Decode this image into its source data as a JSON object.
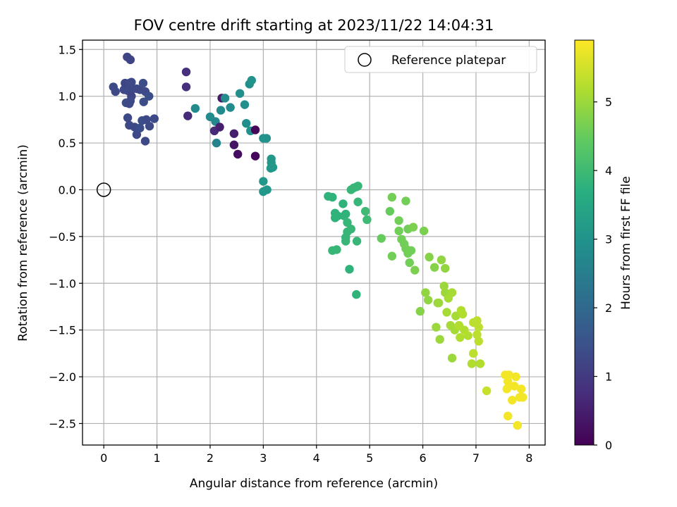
{
  "chart_data": {
    "type": "scatter",
    "title": "FOV centre drift starting at 2023/11/22 14:04:31",
    "xlabel": "Angular distance from reference (arcmin)",
    "ylabel": "Rotation from reference (arcmin)",
    "xlim": [
      -0.4,
      8.3
    ],
    "ylim": [
      -2.73,
      1.6
    ],
    "x_ticks": [
      0,
      1,
      2,
      3,
      4,
      5,
      6,
      7,
      8
    ],
    "y_ticks": [
      -2.5,
      -2.0,
      -1.5,
      -1.0,
      -0.5,
      0.0,
      0.5,
      1.0,
      1.5
    ],
    "y_tick_labels": [
      "−2.5",
      "−2.0",
      "−1.5",
      "−1.0",
      "−0.5",
      "0.0",
      "0.5",
      "1.0",
      "1.5"
    ],
    "grid": true,
    "colormap": "viridis",
    "colorbar": {
      "label": "Hours from first FF file",
      "range": [
        0,
        5.9
      ],
      "ticks": [
        0,
        1,
        2,
        3,
        4,
        5
      ]
    },
    "legend": {
      "placement": "top-right",
      "entries": [
        "Reference platepar"
      ]
    },
    "reference_point": {
      "x": 0,
      "y": 0
    },
    "points": [
      {
        "x": 0.18,
        "y": 1.1,
        "c": 1.3
      },
      {
        "x": 0.22,
        "y": 1.05,
        "c": 1.3
      },
      {
        "x": 0.38,
        "y": 1.07,
        "c": 1.3
      },
      {
        "x": 0.4,
        "y": 1.14,
        "c": 1.2
      },
      {
        "x": 0.44,
        "y": 1.42,
        "c": 1.2
      },
      {
        "x": 0.5,
        "y": 1.39,
        "c": 1.2
      },
      {
        "x": 0.48,
        "y": 1.14,
        "c": 1.3
      },
      {
        "x": 0.52,
        "y": 1.15,
        "c": 1.3
      },
      {
        "x": 0.55,
        "y": 1.08,
        "c": 1.3
      },
      {
        "x": 0.45,
        "y": 1.06,
        "c": 1.3
      },
      {
        "x": 0.52,
        "y": 1.0,
        "c": 1.2
      },
      {
        "x": 0.5,
        "y": 0.95,
        "c": 1.3
      },
      {
        "x": 0.42,
        "y": 0.93,
        "c": 1.4
      },
      {
        "x": 0.48,
        "y": 0.92,
        "c": 1.3
      },
      {
        "x": 0.62,
        "y": 1.08,
        "c": 1.3
      },
      {
        "x": 0.68,
        "y": 1.07,
        "c": 1.3
      },
      {
        "x": 0.74,
        "y": 1.14,
        "c": 1.4
      },
      {
        "x": 0.78,
        "y": 1.05,
        "c": 1.3
      },
      {
        "x": 0.85,
        "y": 1.0,
        "c": 1.4
      },
      {
        "x": 0.75,
        "y": 0.94,
        "c": 1.4
      },
      {
        "x": 0.45,
        "y": 0.77,
        "c": 1.3
      },
      {
        "x": 0.48,
        "y": 0.69,
        "c": 1.3
      },
      {
        "x": 0.58,
        "y": 0.67,
        "c": 1.3
      },
      {
        "x": 0.62,
        "y": 0.59,
        "c": 1.3
      },
      {
        "x": 0.68,
        "y": 0.66,
        "c": 1.4
      },
      {
        "x": 0.72,
        "y": 0.74,
        "c": 1.4
      },
      {
        "x": 0.8,
        "y": 0.75,
        "c": 1.3
      },
      {
        "x": 0.86,
        "y": 0.68,
        "c": 1.3
      },
      {
        "x": 0.95,
        "y": 0.76,
        "c": 1.3
      },
      {
        "x": 0.78,
        "y": 0.52,
        "c": 1.3
      },
      {
        "x": 1.55,
        "y": 1.26,
        "c": 0.8
      },
      {
        "x": 1.55,
        "y": 1.1,
        "c": 0.8
      },
      {
        "x": 1.58,
        "y": 0.79,
        "c": 0.7
      },
      {
        "x": 1.72,
        "y": 0.87,
        "c": 2.8
      },
      {
        "x": 2.0,
        "y": 0.78,
        "c": 2.8
      },
      {
        "x": 2.08,
        "y": 0.63,
        "c": 0.7
      },
      {
        "x": 2.1,
        "y": 0.73,
        "c": 2.7
      },
      {
        "x": 2.12,
        "y": 0.5,
        "c": 2.6
      },
      {
        "x": 2.18,
        "y": 0.67,
        "c": 0.5
      },
      {
        "x": 2.2,
        "y": 0.85,
        "c": 2.8
      },
      {
        "x": 2.22,
        "y": 0.98,
        "c": 0.4
      },
      {
        "x": 2.28,
        "y": 0.98,
        "c": 2.8
      },
      {
        "x": 2.38,
        "y": 0.88,
        "c": 2.8
      },
      {
        "x": 2.45,
        "y": 0.48,
        "c": 0.3
      },
      {
        "x": 2.45,
        "y": 0.6,
        "c": 0.5
      },
      {
        "x": 2.52,
        "y": 0.38,
        "c": 0.2
      },
      {
        "x": 2.56,
        "y": 1.03,
        "c": 2.9
      },
      {
        "x": 2.65,
        "y": 0.91,
        "c": 2.9
      },
      {
        "x": 2.68,
        "y": 0.71,
        "c": 2.9
      },
      {
        "x": 2.74,
        "y": 1.13,
        "c": 2.9
      },
      {
        "x": 2.78,
        "y": 1.17,
        "c": 3.0
      },
      {
        "x": 2.76,
        "y": 0.63,
        "c": 3.0
      },
      {
        "x": 2.85,
        "y": 0.64,
        "c": 0.1
      },
      {
        "x": 2.85,
        "y": 0.36,
        "c": 0.1
      },
      {
        "x": 3.0,
        "y": 0.55,
        "c": 3.0
      },
      {
        "x": 3.06,
        "y": 0.55,
        "c": 3.0
      },
      {
        "x": 3.15,
        "y": 0.33,
        "c": 3.1
      },
      {
        "x": 3.15,
        "y": 0.29,
        "c": 3.1
      },
      {
        "x": 3.14,
        "y": 0.23,
        "c": 3.1
      },
      {
        "x": 3.18,
        "y": 0.24,
        "c": 3.1
      },
      {
        "x": 3.0,
        "y": 0.09,
        "c": 3.1
      },
      {
        "x": 3.0,
        "y": -0.02,
        "c": 3.1
      },
      {
        "x": 3.07,
        "y": 0.0,
        "c": 3.1
      },
      {
        "x": 4.22,
        "y": -0.07,
        "c": 3.8
      },
      {
        "x": 4.3,
        "y": -0.08,
        "c": 3.8
      },
      {
        "x": 4.35,
        "y": -0.25,
        "c": 3.8
      },
      {
        "x": 4.35,
        "y": -0.3,
        "c": 3.8
      },
      {
        "x": 4.4,
        "y": -0.28,
        "c": 3.8
      },
      {
        "x": 4.3,
        "y": -0.65,
        "c": 3.9
      },
      {
        "x": 4.38,
        "y": -0.64,
        "c": 3.9
      },
      {
        "x": 4.5,
        "y": -0.15,
        "c": 3.8
      },
      {
        "x": 4.52,
        "y": -0.28,
        "c": 3.8
      },
      {
        "x": 4.55,
        "y": -0.26,
        "c": 3.8
      },
      {
        "x": 4.58,
        "y": -0.35,
        "c": 3.9
      },
      {
        "x": 4.58,
        "y": -0.45,
        "c": 3.9
      },
      {
        "x": 4.55,
        "y": -0.51,
        "c": 3.9
      },
      {
        "x": 4.55,
        "y": -0.55,
        "c": 3.9
      },
      {
        "x": 4.65,
        "y": -0.42,
        "c": 3.9
      },
      {
        "x": 4.62,
        "y": -0.85,
        "c": 3.8
      },
      {
        "x": 4.65,
        "y": 0.0,
        "c": 3.9
      },
      {
        "x": 4.7,
        "y": 0.02,
        "c": 3.9
      },
      {
        "x": 4.75,
        "y": 0.03,
        "c": 3.9
      },
      {
        "x": 4.78,
        "y": 0.04,
        "c": 3.9
      },
      {
        "x": 4.78,
        "y": -0.13,
        "c": 3.9
      },
      {
        "x": 4.76,
        "y": -0.55,
        "c": 3.9
      },
      {
        "x": 4.75,
        "y": -1.12,
        "c": 3.8
      },
      {
        "x": 4.92,
        "y": -0.23,
        "c": 4.0
      },
      {
        "x": 4.95,
        "y": -0.32,
        "c": 4.0
      },
      {
        "x": 5.22,
        "y": -0.52,
        "c": 4.5
      },
      {
        "x": 5.38,
        "y": -0.23,
        "c": 4.5
      },
      {
        "x": 5.42,
        "y": -0.08,
        "c": 4.6
      },
      {
        "x": 5.42,
        "y": -0.71,
        "c": 4.6
      },
      {
        "x": 5.55,
        "y": -0.33,
        "c": 4.6
      },
      {
        "x": 5.55,
        "y": -0.44,
        "c": 4.6
      },
      {
        "x": 5.6,
        "y": -0.53,
        "c": 4.6
      },
      {
        "x": 5.65,
        "y": -0.58,
        "c": 4.6
      },
      {
        "x": 5.68,
        "y": -0.63,
        "c": 4.6
      },
      {
        "x": 5.72,
        "y": -0.42,
        "c": 4.6
      },
      {
        "x": 5.68,
        "y": -0.12,
        "c": 4.6
      },
      {
        "x": 5.72,
        "y": -0.68,
        "c": 4.6
      },
      {
        "x": 5.75,
        "y": -0.78,
        "c": 4.6
      },
      {
        "x": 5.78,
        "y": -0.65,
        "c": 4.6
      },
      {
        "x": 5.82,
        "y": -0.4,
        "c": 4.7
      },
      {
        "x": 5.85,
        "y": -0.86,
        "c": 4.7
      },
      {
        "x": 5.95,
        "y": -1.3,
        "c": 4.8
      },
      {
        "x": 6.02,
        "y": -0.44,
        "c": 4.7
      },
      {
        "x": 6.05,
        "y": -1.1,
        "c": 4.9
      },
      {
        "x": 6.1,
        "y": -1.18,
        "c": 4.9
      },
      {
        "x": 6.12,
        "y": -0.72,
        "c": 4.8
      },
      {
        "x": 6.22,
        "y": -0.83,
        "c": 4.8
      },
      {
        "x": 6.28,
        "y": -1.21,
        "c": 5.0
      },
      {
        "x": 6.3,
        "y": -1.21,
        "c": 5.0
      },
      {
        "x": 6.25,
        "y": -1.47,
        "c": 5.0
      },
      {
        "x": 6.32,
        "y": -1.6,
        "c": 5.0
      },
      {
        "x": 6.35,
        "y": -0.75,
        "c": 4.9
      },
      {
        "x": 6.42,
        "y": -0.84,
        "c": 4.9
      },
      {
        "x": 6.4,
        "y": -1.03,
        "c": 5.0
      },
      {
        "x": 6.42,
        "y": -1.1,
        "c": 5.0
      },
      {
        "x": 6.48,
        "y": -1.16,
        "c": 5.1
      },
      {
        "x": 6.45,
        "y": -1.31,
        "c": 5.1
      },
      {
        "x": 6.55,
        "y": -1.1,
        "c": 5.1
      },
      {
        "x": 6.52,
        "y": -1.45,
        "c": 5.1
      },
      {
        "x": 6.6,
        "y": -1.5,
        "c": 5.1
      },
      {
        "x": 6.55,
        "y": -1.8,
        "c": 5.0
      },
      {
        "x": 6.62,
        "y": -1.35,
        "c": 5.1
      },
      {
        "x": 6.68,
        "y": -1.45,
        "c": 5.2
      },
      {
        "x": 6.7,
        "y": -1.58,
        "c": 5.2
      },
      {
        "x": 6.72,
        "y": -1.29,
        "c": 5.2
      },
      {
        "x": 6.75,
        "y": -1.33,
        "c": 5.2
      },
      {
        "x": 6.78,
        "y": -1.5,
        "c": 5.2
      },
      {
        "x": 6.85,
        "y": -1.56,
        "c": 5.2
      },
      {
        "x": 6.92,
        "y": -1.86,
        "c": 5.2
      },
      {
        "x": 6.95,
        "y": -1.42,
        "c": 5.3
      },
      {
        "x": 6.95,
        "y": -1.75,
        "c": 5.3
      },
      {
        "x": 7.02,
        "y": -1.4,
        "c": 5.3
      },
      {
        "x": 7.05,
        "y": -1.47,
        "c": 5.3
      },
      {
        "x": 7.02,
        "y": -1.55,
        "c": 5.3
      },
      {
        "x": 7.05,
        "y": -1.62,
        "c": 5.3
      },
      {
        "x": 7.08,
        "y": -1.86,
        "c": 5.2
      },
      {
        "x": 7.2,
        "y": -2.15,
        "c": 5.4
      },
      {
        "x": 7.55,
        "y": -1.98,
        "c": 5.8
      },
      {
        "x": 7.6,
        "y": -2.05,
        "c": 5.8
      },
      {
        "x": 7.62,
        "y": -1.98,
        "c": 5.8
      },
      {
        "x": 7.58,
        "y": -2.13,
        "c": 5.8
      },
      {
        "x": 7.68,
        "y": -2.25,
        "c": 5.8
      },
      {
        "x": 7.72,
        "y": -2.1,
        "c": 5.8
      },
      {
        "x": 7.75,
        "y": -2.0,
        "c": 5.8
      },
      {
        "x": 7.78,
        "y": -2.52,
        "c": 5.8
      },
      {
        "x": 7.6,
        "y": -2.42,
        "c": 5.8
      },
      {
        "x": 7.82,
        "y": -2.22,
        "c": 5.8
      },
      {
        "x": 7.85,
        "y": -2.13,
        "c": 5.8
      },
      {
        "x": 7.88,
        "y": -2.22,
        "c": 5.8
      }
    ]
  }
}
